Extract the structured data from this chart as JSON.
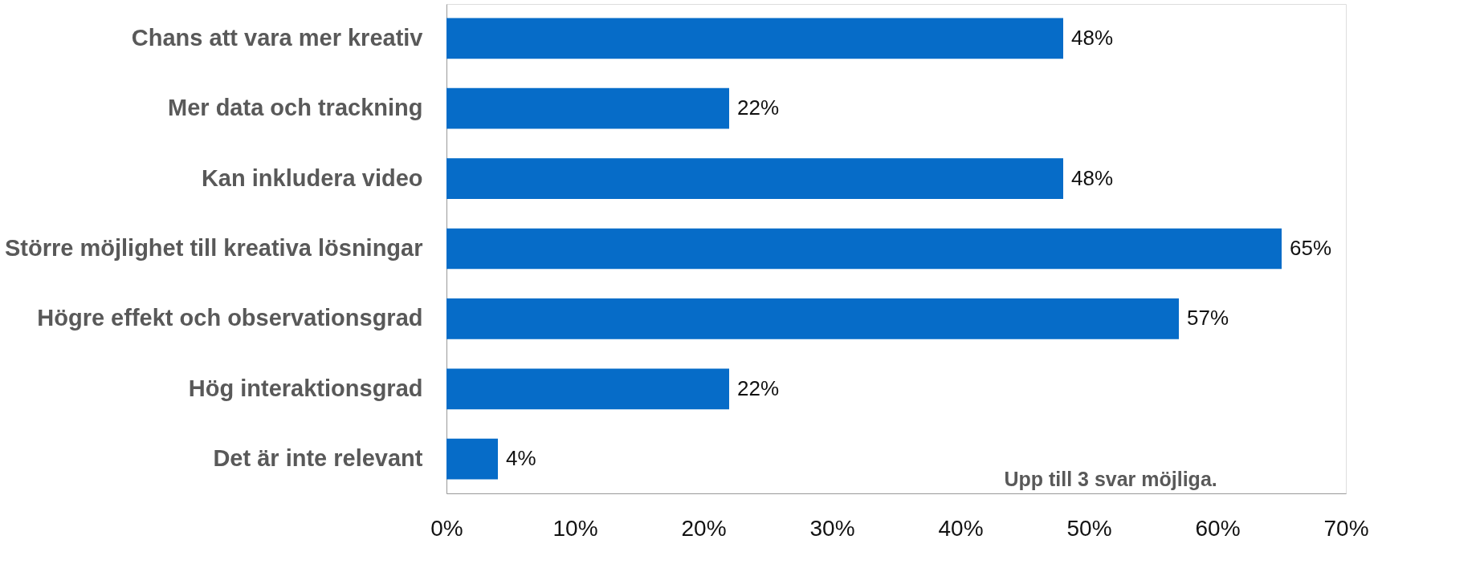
{
  "chart_data": {
    "type": "bar",
    "orientation": "horizontal",
    "categories": [
      "Chans att vara mer kreativ",
      "Mer data och trackning",
      "Kan inkludera video",
      "Större möjlighet till kreativa lösningar",
      "Högre effekt och observationsgrad",
      "Hög interaktionsgrad",
      "Det är inte relevant"
    ],
    "values": [
      48,
      22,
      48,
      65,
      57,
      22,
      4
    ],
    "value_labels": [
      "48%",
      "22%",
      "48%",
      "65%",
      "57%",
      "22%",
      "4%"
    ],
    "color": "#066cc8",
    "xlim": [
      0,
      70
    ],
    "xticks": [
      {
        "value": 0,
        "label": "0%"
      },
      {
        "value": 10,
        "label": "10%"
      },
      {
        "value": 20,
        "label": "20%"
      },
      {
        "value": 30,
        "label": "30%"
      },
      {
        "value": 40,
        "label": "40%"
      },
      {
        "value": 50,
        "label": "50%"
      },
      {
        "value": 60,
        "label": "60%"
      },
      {
        "value": 70,
        "label": "70%"
      }
    ],
    "annotations": [
      "Upp till 3 svar möjliga."
    ],
    "grid": false
  }
}
